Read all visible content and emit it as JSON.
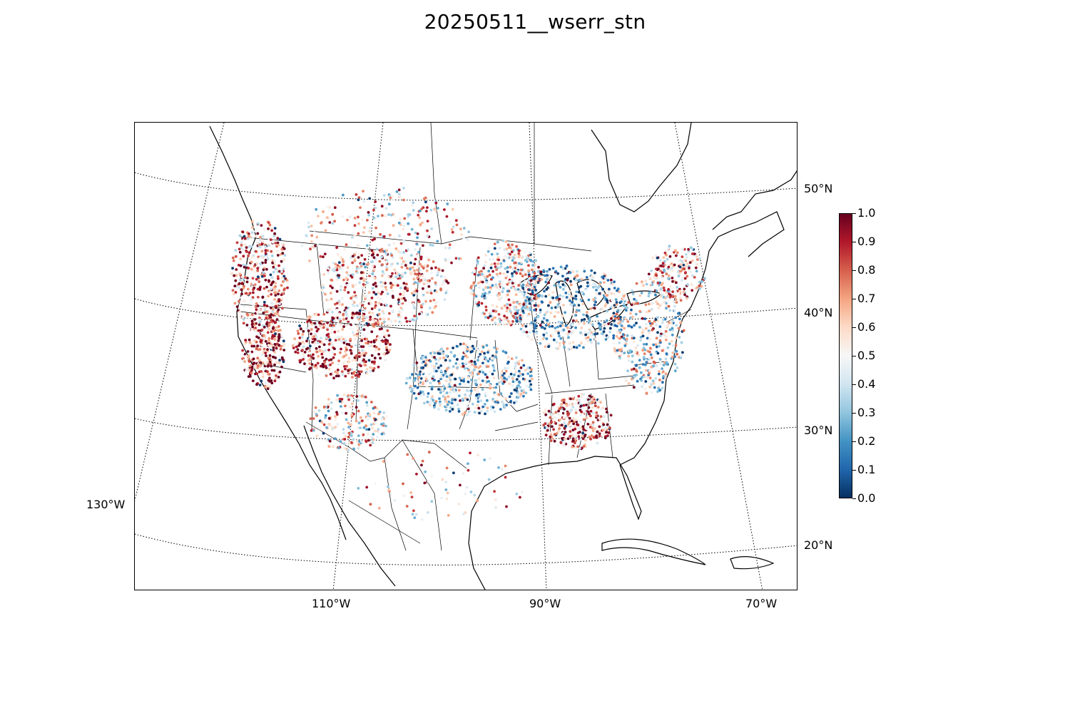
{
  "title": "20250511__wserr_stn",
  "map": {
    "projection": "lambert-conformal",
    "extent": {
      "lon": [
        -130,
        -65
      ],
      "lat": [
        20,
        55
      ]
    },
    "lat_labels": [
      {
        "text": "50°N",
        "lat": 50
      },
      {
        "text": "40°N",
        "lat": 40
      },
      {
        "text": "30°N",
        "lat": 30
      },
      {
        "text": "20°N",
        "lat": 20
      }
    ],
    "lon_labels": [
      {
        "text": "110°W",
        "lon": -110
      },
      {
        "text": "90°W",
        "lon": -90
      },
      {
        "text": "70°W",
        "lon": -70
      },
      {
        "text": "130°W",
        "lon": -130
      }
    ],
    "features": [
      "coastlines",
      "country-borders",
      "state-borders",
      "graticule-dotted"
    ],
    "point_layer": "station-markers",
    "colormap": "RdBu_r",
    "colors": {
      "low": "#053061",
      "mid": "#f7f7f7",
      "high": "#67001f"
    }
  },
  "colorbar": {
    "min": 0.0,
    "max": 1.0,
    "tick_labels": [
      "0.0",
      "0.1",
      "0.2",
      "0.3",
      "0.4",
      "0.5",
      "0.6",
      "0.7",
      "0.8",
      "0.9",
      "1.0"
    ]
  }
}
